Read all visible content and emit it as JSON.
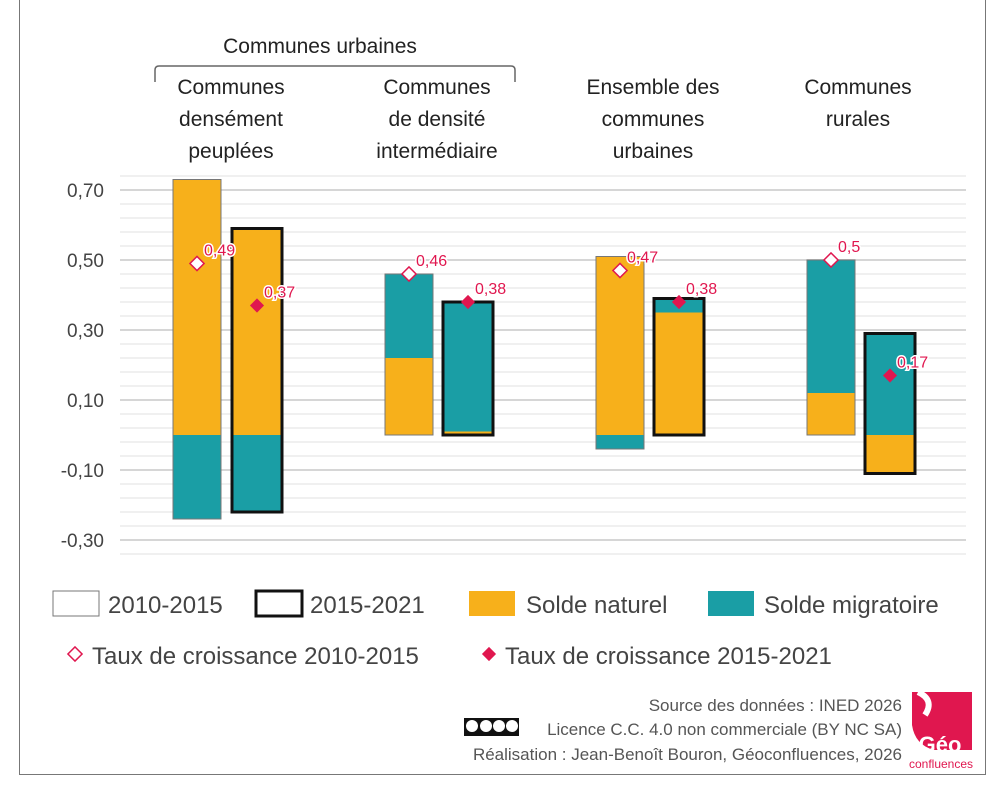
{
  "chart_data": {
    "type": "bar",
    "stacked": true,
    "headers": {
      "urban_bracket": "Communes urbaines",
      "groups": [
        [
          "Communes",
          "densément",
          "peuplées"
        ],
        [
          "Communes",
          "de densité",
          "intermédiaire"
        ],
        [
          "Ensemble des",
          "communes",
          "urbaines"
        ],
        [
          "Communes",
          "rurales"
        ]
      ]
    },
    "categories": [
      "Communes densément peuplées",
      "Communes de densité intermédiaire",
      "Ensemble des communes urbaines",
      "Communes rurales"
    ],
    "periods": [
      "2010-2015",
      "2015-2021"
    ],
    "series": [
      {
        "name": "Solde naturel",
        "color": "#f7b01b",
        "values": [
          [
            0.73,
            0.59
          ],
          [
            0.22,
            0.01
          ],
          [
            0.51,
            0.35
          ],
          [
            0.12,
            -0.11
          ]
        ]
      },
      {
        "name": "Solde migratoire",
        "color": "#1a9ea5",
        "values": [
          [
            -0.24,
            -0.22
          ],
          [
            0.24,
            0.37
          ],
          [
            -0.04,
            0.04
          ],
          [
            0.38,
            0.29
          ]
        ]
      }
    ],
    "growth_rates": [
      {
        "name": "Taux de croissance 2010-2015",
        "values": [
          0.49,
          0.46,
          0.47,
          0.5
        ],
        "labels": [
          "0,49",
          "0,46",
          "0,47",
          "0,5"
        ]
      },
      {
        "name": "Taux de croissance 2015-2021",
        "values": [
          0.37,
          0.38,
          0.38,
          0.17
        ],
        "labels": [
          "0,37",
          "0,38",
          "0,38",
          "0,17"
        ]
      }
    ],
    "marker_color": "#e0174f",
    "yticks": [
      0.7,
      0.5,
      0.3,
      0.1,
      -0.1,
      -0.3
    ],
    "ytick_labels": [
      "0,70",
      "0,50",
      "0,30",
      "0,10",
      "-0,10",
      "-0,30"
    ],
    "ylim": [
      -0.32,
      0.76
    ],
    "grid": true,
    "legend": {
      "period_items": [
        "2010-2015",
        "2015-2021"
      ],
      "series_items": [
        "Solde naturel",
        "Solde migratoire"
      ],
      "rate_items": [
        "Taux de croissance 2010-2015",
        "Taux de croissance 2015-2021"
      ],
      "placement": "bottom"
    }
  },
  "footer": {
    "source": "Source des données : INED 2026",
    "licence": "Licence C.C. 4.0 non commerciale (BY NC SA)",
    "credit": "Réalisation : Jean-Benoît Bouron, Géoconfluences, 2026",
    "logo_text": [
      "Géo",
      "confluences"
    ],
    "logo_color": "#e0174f"
  }
}
